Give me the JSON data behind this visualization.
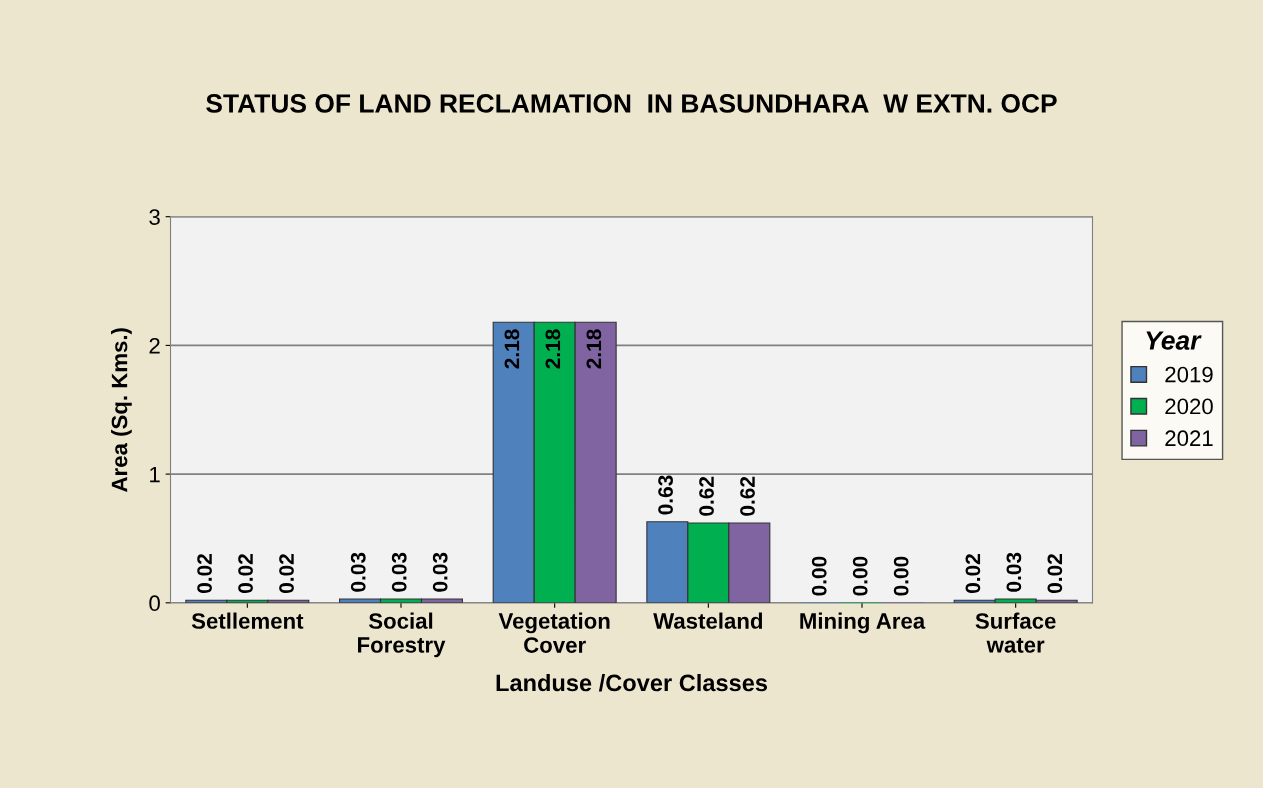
{
  "chart_data": {
    "type": "bar",
    "title": "STATUS OF LAND RECLAMATION  IN BASUNDHARA  W EXTN. OCP",
    "xlabel": "Landuse /Cover Classes",
    "ylabel": "Area (Sq. Kms.)",
    "legend_title": "Year",
    "categories": [
      "Setllement",
      "Social\nForestry",
      "Vegetation\nCover",
      "Wasteland",
      "Mining Area",
      "Surface\nwater"
    ],
    "series": [
      {
        "name": "2019",
        "color": "#4f81bd",
        "values": [
          0.02,
          0.03,
          2.18,
          0.63,
          0.0,
          0.02
        ],
        "value_labels": [
          "0.02",
          "0.03",
          "2.18",
          "0.63",
          "0.00",
          "0.02"
        ]
      },
      {
        "name": "2020",
        "color": "#00b050",
        "values": [
          0.02,
          0.03,
          2.18,
          0.62,
          0.0,
          0.03
        ],
        "value_labels": [
          "0.02",
          "0.03",
          "2.18",
          "0.62",
          "0.00",
          "0.03"
        ]
      },
      {
        "name": "2021",
        "color": "#8064a2",
        "values": [
          0.02,
          0.03,
          2.18,
          0.62,
          0.0,
          0.02
        ],
        "value_labels": [
          "0.02",
          "0.03",
          "2.18",
          "0.62",
          "0.00",
          "0.02"
        ]
      }
    ],
    "ylim": [
      0,
      3
    ],
    "yticks": [
      0,
      1,
      2,
      3
    ],
    "grid": "y",
    "legend": "right"
  }
}
